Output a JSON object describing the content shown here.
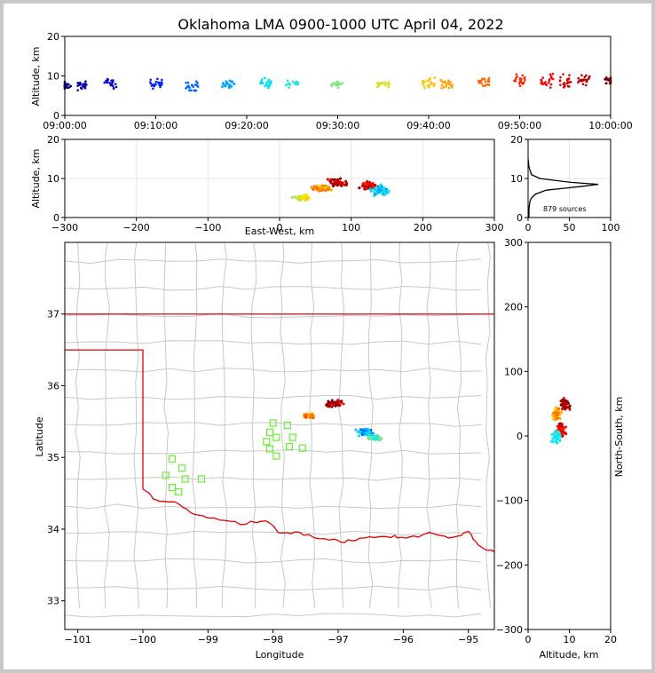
{
  "title": "Oklahoma LMA 0900-1000 UTC April 04, 2022",
  "colors": {
    "frame_bg": "#c8c8c8",
    "state_border": "#e00000",
    "county_lines": "#c8c8c8",
    "station_markers": "#66ee33",
    "histogram_line": "#000000"
  },
  "chart_data": [
    {
      "id": "time_height",
      "type": "scatter",
      "xlabel": "",
      "ylabel": "Altitude, km",
      "xlim": [
        "09:00:00",
        "10:00:00"
      ],
      "ylim": [
        0,
        20
      ],
      "x_ticks": [
        "09:00:00",
        "09:10:00",
        "09:20:00",
        "09:30:00",
        "09:40:00",
        "09:50:00",
        "10:00:00"
      ],
      "y_ticks": [
        "0",
        "10",
        "20"
      ],
      "colormap": "jet (time)",
      "clusters": [
        {
          "t_min": 0,
          "alt_km": 7.5,
          "spread": 2.5
        },
        {
          "t_min": 2,
          "alt_km": 7.5,
          "spread": 2.5
        },
        {
          "t_min": 5,
          "alt_km": 8,
          "spread": 3
        },
        {
          "t_min": 10,
          "alt_km": 8,
          "spread": 3
        },
        {
          "t_min": 14,
          "alt_km": 7.5,
          "spread": 3
        },
        {
          "t_min": 18,
          "alt_km": 8,
          "spread": 3
        },
        {
          "t_min": 22,
          "alt_km": 8,
          "spread": 3
        },
        {
          "t_min": 25,
          "alt_km": 8,
          "spread": 2
        },
        {
          "t_min": 30,
          "alt_km": 8,
          "spread": 2
        },
        {
          "t_min": 35,
          "alt_km": 8,
          "spread": 2
        },
        {
          "t_min": 40,
          "alt_km": 8,
          "spread": 4
        },
        {
          "t_min": 42,
          "alt_km": 8,
          "spread": 3
        },
        {
          "t_min": 46,
          "alt_km": 8.5,
          "spread": 3
        },
        {
          "t_min": 50,
          "alt_km": 9,
          "spread": 3
        },
        {
          "t_min": 53,
          "alt_km": 9,
          "spread": 4
        },
        {
          "t_min": 55,
          "alt_km": 8.5,
          "spread": 5
        },
        {
          "t_min": 57,
          "alt_km": 9,
          "spread": 3
        },
        {
          "t_min": 60,
          "alt_km": 9,
          "spread": 2
        }
      ]
    },
    {
      "id": "ew_height",
      "type": "scatter",
      "xlabel": "East-West, km",
      "ylabel": "Altitude, km",
      "xlim": [
        -300,
        300
      ],
      "ylim": [
        0,
        20
      ],
      "x_ticks": [
        "−300",
        "−200",
        "−100",
        "0",
        "100",
        "200",
        "300"
      ],
      "y_ticks": [
        "0",
        "10",
        "20"
      ],
      "clusters": [
        {
          "ew_km": 80,
          "alt_km": 9,
          "spread": 3
        },
        {
          "ew_km": 60,
          "alt_km": 7.5,
          "spread": 2
        },
        {
          "ew_km": 30,
          "alt_km": 5,
          "spread": 2
        },
        {
          "ew_km": 125,
          "alt_km": 8,
          "spread": 3
        },
        {
          "ew_km": 140,
          "alt_km": 7,
          "spread": 4
        }
      ]
    },
    {
      "id": "altitude_histogram",
      "type": "line",
      "xlabel": "",
      "ylabel": "",
      "xlim": [
        0,
        100
      ],
      "ylim": [
        0,
        20
      ],
      "x_ticks": [
        "0",
        "50",
        "100"
      ],
      "y_ticks": [
        "0",
        "10",
        "20"
      ],
      "annotation": "879 sources",
      "profile": [
        {
          "alt_km": 0,
          "count": 1
        },
        {
          "alt_km": 2,
          "count": 1
        },
        {
          "alt_km": 4,
          "count": 2
        },
        {
          "alt_km": 5,
          "count": 4
        },
        {
          "alt_km": 6,
          "count": 9
        },
        {
          "alt_km": 7,
          "count": 22
        },
        {
          "alt_km": 8,
          "count": 66
        },
        {
          "alt_km": 8.5,
          "count": 85
        },
        {
          "alt_km": 9,
          "count": 52
        },
        {
          "alt_km": 10,
          "count": 14
        },
        {
          "alt_km": 11,
          "count": 4
        },
        {
          "alt_km": 13,
          "count": 1
        },
        {
          "alt_km": 15,
          "count": 0
        }
      ]
    },
    {
      "id": "plan_view",
      "type": "scatter",
      "xlabel": "Longitude",
      "ylabel": "Latitude",
      "xlim": [
        -101.2,
        -94.6
      ],
      "ylim": [
        32.6,
        38.0
      ],
      "x_ticks": [
        "−101",
        "−100",
        "−99",
        "−98",
        "−97",
        "−96",
        "−95"
      ],
      "y_ticks": [
        "33",
        "34",
        "35",
        "36",
        "37"
      ],
      "stations": [
        [
          -99.55,
          34.98
        ],
        [
          -99.4,
          34.85
        ],
        [
          -99.65,
          34.75
        ],
        [
          -99.35,
          34.7
        ],
        [
          -99.45,
          34.52
        ],
        [
          -99.55,
          34.58
        ],
        [
          -99.1,
          34.7
        ],
        [
          -98.0,
          35.48
        ],
        [
          -98.05,
          35.35
        ],
        [
          -98.1,
          35.22
        ],
        [
          -97.95,
          35.28
        ],
        [
          -98.05,
          35.12
        ],
        [
          -97.95,
          35.02
        ],
        [
          -97.78,
          35.45
        ],
        [
          -97.7,
          35.28
        ],
        [
          -97.75,
          35.15
        ],
        [
          -97.55,
          35.13
        ]
      ],
      "clusters": [
        {
          "lon": -97.05,
          "lat": 35.75,
          "spread": 0.18
        },
        {
          "lon": -97.45,
          "lat": 35.58,
          "spread": 0.12
        },
        {
          "lon": -96.6,
          "lat": 35.35,
          "spread": 0.2
        },
        {
          "lon": -96.45,
          "lat": 35.28,
          "spread": 0.15
        }
      ]
    },
    {
      "id": "ns_height",
      "type": "scatter",
      "xlabel": "Altitude, km",
      "ylabel": "North-South, km",
      "xlim": [
        0,
        20
      ],
      "ylim": [
        -300,
        300
      ],
      "x_ticks": [
        "0",
        "10",
        "20"
      ],
      "y_ticks": [
        "−300",
        "−200",
        "−100",
        "0",
        "100",
        "200",
        "300"
      ],
      "clusters": [
        {
          "alt_km": 9,
          "ns_km": 50,
          "spread": 3
        },
        {
          "alt_km": 7,
          "ns_km": 35,
          "spread": 3
        },
        {
          "alt_km": 8,
          "ns_km": 10,
          "spread": 3
        },
        {
          "alt_km": 7,
          "ns_km": 0,
          "spread": 3
        }
      ]
    }
  ]
}
